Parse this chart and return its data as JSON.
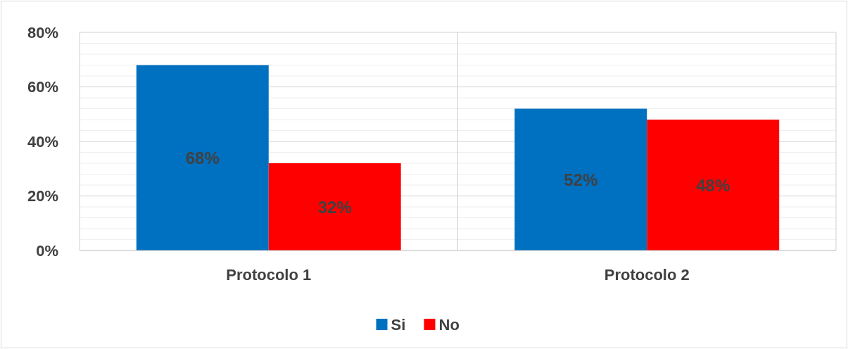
{
  "chart_data": {
    "type": "bar",
    "categories": [
      "Protocolo 1",
      "Protocolo 2"
    ],
    "series": [
      {
        "name": "Si",
        "color": "#0070c0",
        "values": [
          68,
          52
        ],
        "value_labels": [
          "68%",
          "52%"
        ]
      },
      {
        "name": "No",
        "color": "#ff0000",
        "values": [
          32,
          48
        ],
        "value_labels": [
          "32%",
          "48%"
        ]
      }
    ],
    "ylim": [
      0,
      80
    ],
    "yticks": [
      {
        "value": 0,
        "label": "0%"
      },
      {
        "value": 4,
        "label": null
      },
      {
        "value": 8,
        "label": null
      },
      {
        "value": 12,
        "label": null
      },
      {
        "value": 16,
        "label": null
      },
      {
        "value": 20,
        "label": "20%"
      },
      {
        "value": 24,
        "label": null
      },
      {
        "value": 28,
        "label": null
      },
      {
        "value": 32,
        "label": null
      },
      {
        "value": 36,
        "label": null
      },
      {
        "value": 40,
        "label": "40%"
      },
      {
        "value": 44,
        "label": null
      },
      {
        "value": 48,
        "label": null
      },
      {
        "value": 52,
        "label": null
      },
      {
        "value": 56,
        "label": null
      },
      {
        "value": 60,
        "label": "60%"
      },
      {
        "value": 64,
        "label": null
      },
      {
        "value": 68,
        "label": null
      },
      {
        "value": 72,
        "label": null
      },
      {
        "value": 76,
        "label": null
      },
      {
        "value": 80,
        "label": "80%"
      }
    ],
    "grid": true,
    "legend": "bottom"
  }
}
